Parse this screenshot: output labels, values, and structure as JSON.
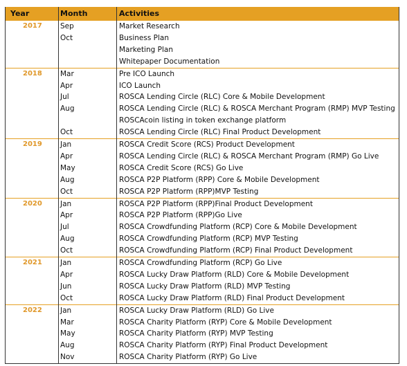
{
  "header": [
    "Year",
    "Month",
    "Activities"
  ],
  "groups": [
    {
      "year": "2017",
      "rows": [
        {
          "month": "Sep",
          "activity": "Market Research"
        },
        {
          "month": "Oct",
          "activity": "Business Plan"
        },
        {
          "month": null,
          "activity": "Marketing Plan"
        },
        {
          "month": null,
          "activity": "Whitepaper Documentation"
        }
      ]
    },
    {
      "year": "2018",
      "rows": [
        {
          "month": "Mar",
          "activity": "Pre ICO Launch"
        },
        {
          "month": "Apr",
          "activity": "ICO Launch"
        },
        {
          "month": "Jul",
          "activity": "ROSCA Lending Circle (RLC) Core & Mobile Development"
        },
        {
          "month": "Aug",
          "activity": "ROSCA Lending Circle (RLC) & ROSCA Merchant Program (RMP) MVP Testing"
        },
        {
          "month": null,
          "activity": "ROSCAcoin listing in token exchange platform"
        },
        {
          "month": "Oct",
          "activity": "ROSCA Lending Circle (RLC) Final Product Development"
        }
      ]
    },
    {
      "year": "2019",
      "rows": [
        {
          "month": "Jan",
          "activity": "ROSCA Credit Score (RCS) Product Development"
        },
        {
          "month": "Apr",
          "activity": "ROSCA Lending Circle (RLC) & ROSCA Merchant Program (RMP) Go Live"
        },
        {
          "month": "May",
          "activity": "ROSCA Credit Score (RCS) Go Live"
        },
        {
          "month": "Aug",
          "activity": "ROSCA P2P Platform (RPP) Core & Mobile Development"
        },
        {
          "month": "Oct",
          "activity": "ROSCA P2P Platform (RPP)MVP Testing"
        }
      ]
    },
    {
      "year": "2020",
      "rows": [
        {
          "month": "Jan",
          "activity": "ROSCA P2P Platform (RPP)Final Product Development"
        },
        {
          "month": "Apr",
          "activity": "ROSCA P2P Platform (RPP)Go Live"
        },
        {
          "month": "Jul",
          "activity": "ROSCA Crowdfunding Platform (RCP) Core & Mobile Development"
        },
        {
          "month": "Aug",
          "activity": "ROSCA Crowdfunding Platform (RCP) MVP Testing"
        },
        {
          "month": "Oct",
          "activity": "ROSCA Crowdfunding Platform (RCP) Final Product Development"
        }
      ]
    },
    {
      "year": "2021",
      "rows": [
        {
          "month": "Jan",
          "activity": "ROSCA Crowdfunding Platform (RCP) Go Live"
        },
        {
          "month": "Apr",
          "activity": "ROSCA Lucky Draw Platform (RLD) Core & Mobile Development"
        },
        {
          "month": "Jun",
          "activity": "ROSCA Lucky Draw Platform (RLD) MVP Testing"
        },
        {
          "month": "Oct",
          "activity": "ROSCA Lucky Draw Platform (RLD) Final Product Development"
        }
      ]
    },
    {
      "year": "2022",
      "rows": [
        {
          "month": "Jan",
          "activity": "ROSCA Lucky Draw Platform (RLD) Go Live"
        },
        {
          "month": "Mar",
          "activity": "ROSCA Charity Platform (RYP) Core & Mobile Development"
        },
        {
          "month": "May",
          "activity": "ROSCA Charity Platform (RYP) MVP Testing"
        },
        {
          "month": "Aug",
          "activity": "ROSCA Charity Platform (RYP) Final Product Development"
        },
        {
          "month": "Nov",
          "activity": "ROSCA Charity Platform (RYP) Go Live"
        }
      ]
    }
  ]
}
